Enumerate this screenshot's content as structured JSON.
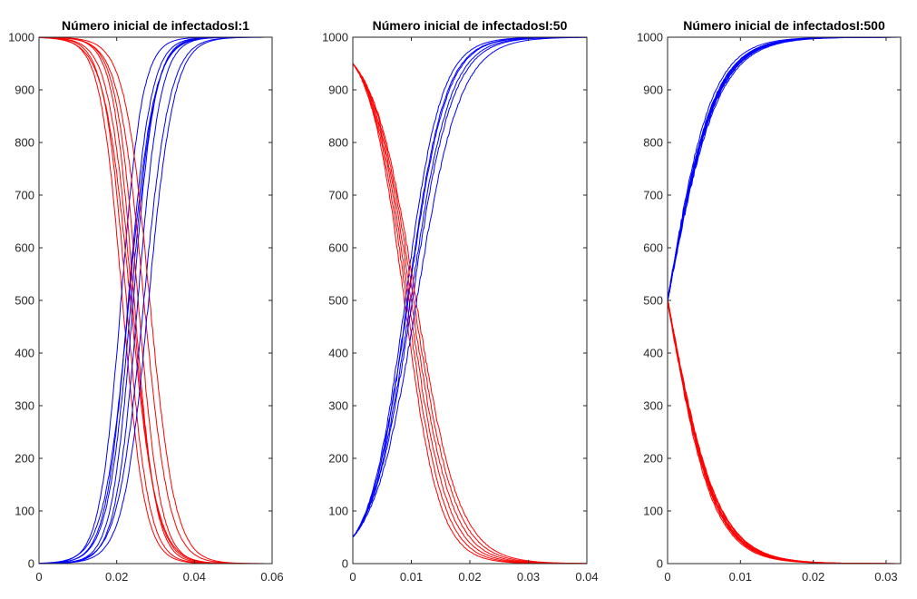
{
  "chart_data": [
    {
      "type": "line",
      "title": "Número inicial de infectadosI:1",
      "xlim": [
        0,
        0.06
      ],
      "ylim": [
        0,
        1000
      ],
      "xticks": [
        "0",
        "0.02",
        "0.04",
        "0.06"
      ],
      "yticks": [
        "0",
        "100",
        "200",
        "300",
        "400",
        "500",
        "600",
        "700",
        "800",
        "900",
        "1000"
      ],
      "grid": false,
      "legend": "none",
      "run_crossing_times": [
        0.0215,
        0.0225,
        0.0235,
        0.024,
        0.0245,
        0.0255,
        0.027,
        0.0285
      ],
      "series": [
        {
          "color": "#ff0000",
          "x": [
            0.0,
            0.01,
            0.015,
            0.02,
            0.0245,
            0.03,
            0.035,
            0.04,
            0.045,
            0.05,
            0.056
          ],
          "y": [
            999,
            985,
            920,
            720,
            500,
            250,
            110,
            40,
            12,
            3,
            0
          ]
        },
        {
          "color": "#0000ff",
          "x": [
            0.0,
            0.01,
            0.015,
            0.02,
            0.0245,
            0.03,
            0.035,
            0.04,
            0.045,
            0.05,
            0.056
          ],
          "y": [
            1,
            15,
            80,
            280,
            500,
            750,
            890,
            960,
            988,
            997,
            1000
          ]
        }
      ]
    },
    {
      "type": "line",
      "title": "Número inicial de infectadosI:50",
      "xlim": [
        0,
        0.04
      ],
      "ylim": [
        0,
        1000
      ],
      "xticks": [
        "0",
        "0.01",
        "0.02",
        "0.03",
        "0.04"
      ],
      "yticks": [
        "0",
        "100",
        "200",
        "300",
        "400",
        "500",
        "600",
        "700",
        "800",
        "900",
        "1000"
      ],
      "grid": false,
      "legend": "none",
      "run_crossing_times": [
        0.0088,
        0.0092,
        0.0096,
        0.01,
        0.0104,
        0.0108
      ],
      "series": [
        {
          "color": "#ff0000",
          "x": [
            0.0,
            0.005,
            0.0098,
            0.015,
            0.02,
            0.025,
            0.03,
            0.037
          ],
          "y": [
            950,
            850,
            500,
            190,
            70,
            20,
            5,
            0
          ]
        },
        {
          "color": "#0000ff",
          "x": [
            0.0,
            0.005,
            0.0098,
            0.015,
            0.02,
            0.025,
            0.03,
            0.037
          ],
          "y": [
            50,
            150,
            500,
            810,
            930,
            980,
            995,
            1000
          ]
        }
      ]
    },
    {
      "type": "line",
      "title": "Número inicial de infectadosI:500",
      "xlim": [
        0,
        0.032
      ],
      "ylim": [
        0,
        1000
      ],
      "xticks": [
        "0",
        "0.01",
        "0.02",
        "0.03"
      ],
      "yticks": [
        "0",
        "100",
        "200",
        "300",
        "400",
        "500",
        "600",
        "700",
        "800",
        "900",
        "1000"
      ],
      "grid": false,
      "legend": "none",
      "series": [
        {
          "color": "#ff0000",
          "x": [
            0.0,
            0.005,
            0.01,
            0.015,
            0.02,
            0.025,
            0.03
          ],
          "y": [
            500,
            230,
            90,
            30,
            8,
            2,
            0
          ]
        },
        {
          "color": "#0000ff",
          "x": [
            0.0,
            0.005,
            0.01,
            0.015,
            0.02,
            0.025,
            0.03
          ],
          "y": [
            500,
            770,
            910,
            970,
            992,
            998,
            1000
          ]
        }
      ]
    }
  ]
}
